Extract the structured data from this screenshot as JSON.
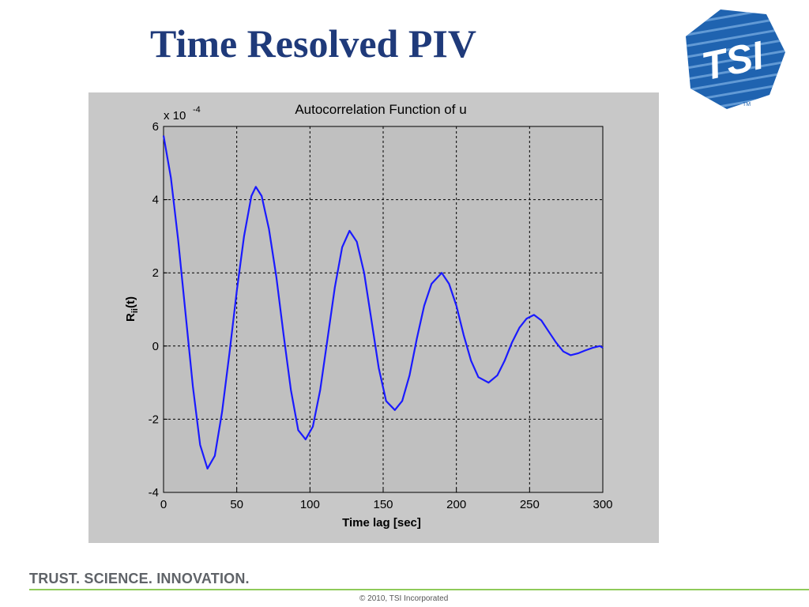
{
  "slide": {
    "title": "Time Resolved PIV",
    "logo_text": "TSI",
    "logo_tm": "TM",
    "tagline": "TRUST. SCIENCE. INNOVATION.",
    "copyright": "© 2010, TSI Incorporated"
  },
  "colors": {
    "title": "#1f3a7a",
    "line": "#1a1aff",
    "figure_bg": "#c8c8c8",
    "grid": "#000000",
    "footer_rule": "#8fcb5a",
    "logo_blue": "#1f63b0"
  },
  "chart_data": {
    "type": "line",
    "title": "Autocorrelation Function of u",
    "xlabel": "Time lag [sec]",
    "ylabel_main": "R",
    "ylabel_sub": "ii",
    "ylabel_tail": "(t)",
    "y_exponent_prefix": "x 10",
    "y_exponent": "-4",
    "xlim": [
      0,
      300
    ],
    "ylim": [
      -4,
      6
    ],
    "xticks": [
      0,
      50,
      100,
      150,
      200,
      250,
      300
    ],
    "yticks": [
      -4,
      -2,
      0,
      2,
      4,
      6
    ],
    "xtick_labels": [
      "0",
      "50",
      "100",
      "150",
      "200",
      "250",
      "300"
    ],
    "ytick_labels": [
      "-4",
      "-2",
      "0",
      "2",
      "4",
      "6"
    ],
    "grid": true,
    "series": [
      {
        "points": [
          [
            0,
            5.75
          ],
          [
            5,
            4.6
          ],
          [
            10,
            2.9
          ],
          [
            15,
            0.9
          ],
          [
            20,
            -1.1
          ],
          [
            25,
            -2.7
          ],
          [
            30,
            -3.35
          ],
          [
            35,
            -3.0
          ],
          [
            40,
            -1.8
          ],
          [
            45,
            -0.2
          ],
          [
            50,
            1.5
          ],
          [
            55,
            3.0
          ],
          [
            60,
            4.1
          ],
          [
            63,
            4.35
          ],
          [
            67,
            4.1
          ],
          [
            72,
            3.2
          ],
          [
            77,
            1.9
          ],
          [
            82,
            0.3
          ],
          [
            87,
            -1.2
          ],
          [
            92,
            -2.3
          ],
          [
            97,
            -2.55
          ],
          [
            102,
            -2.2
          ],
          [
            107,
            -1.2
          ],
          [
            112,
            0.2
          ],
          [
            117,
            1.6
          ],
          [
            122,
            2.7
          ],
          [
            127,
            3.15
          ],
          [
            132,
            2.85
          ],
          [
            137,
            2.0
          ],
          [
            142,
            0.7
          ],
          [
            147,
            -0.6
          ],
          [
            152,
            -1.5
          ],
          [
            158,
            -1.75
          ],
          [
            163,
            -1.5
          ],
          [
            168,
            -0.8
          ],
          [
            173,
            0.2
          ],
          [
            178,
            1.1
          ],
          [
            183,
            1.7
          ],
          [
            190,
            2.0
          ],
          [
            195,
            1.7
          ],
          [
            200,
            1.1
          ],
          [
            205,
            0.3
          ],
          [
            210,
            -0.4
          ],
          [
            215,
            -0.85
          ],
          [
            222,
            -1.0
          ],
          [
            228,
            -0.8
          ],
          [
            233,
            -0.4
          ],
          [
            238,
            0.1
          ],
          [
            243,
            0.5
          ],
          [
            248,
            0.75
          ],
          [
            253,
            0.85
          ],
          [
            258,
            0.7
          ],
          [
            263,
            0.4
          ],
          [
            268,
            0.1
          ],
          [
            273,
            -0.15
          ],
          [
            278,
            -0.25
          ],
          [
            283,
            -0.2
          ],
          [
            288,
            -0.12
          ],
          [
            293,
            -0.05
          ],
          [
            298,
            0.0
          ],
          [
            300,
            -0.05
          ]
        ]
      }
    ]
  }
}
